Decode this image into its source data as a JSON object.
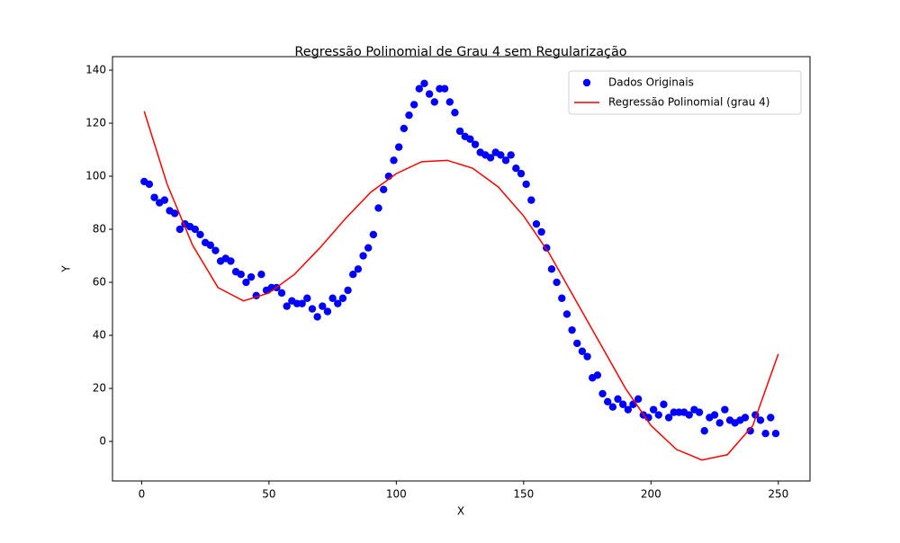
{
  "chart_data": {
    "type": "scatter",
    "title": "Regressão Polinomial de Grau 4 sem Regularização",
    "x_label": "X",
    "y_label": "Y",
    "xlim": [
      -11.45,
      262.45
    ],
    "ylim": [
      -14.9,
      145.1
    ],
    "xticks": [
      0,
      50,
      100,
      150,
      200,
      250
    ],
    "yticks": [
      0,
      20,
      40,
      60,
      80,
      100,
      120,
      140
    ],
    "legend": "upper right",
    "series": [
      {
        "name": "Dados Originais",
        "type": "scatter",
        "color": "#0000ff",
        "x": [
          1,
          3,
          5,
          7,
          9,
          11,
          13,
          15,
          17,
          19,
          21,
          23,
          25,
          27,
          29,
          31,
          33,
          35,
          37,
          39,
          41,
          43,
          45,
          47,
          49,
          51,
          53,
          55,
          57,
          59,
          61,
          63,
          65,
          67,
          69,
          71,
          73,
          75,
          77,
          79,
          81,
          83,
          85,
          87,
          89,
          91,
          93,
          95,
          97,
          99,
          101,
          103,
          105,
          107,
          109,
          111,
          113,
          115,
          117,
          119,
          121,
          123,
          125,
          127,
          129,
          131,
          133,
          135,
          137,
          139,
          141,
          143,
          145,
          147,
          149,
          151,
          153,
          155,
          157,
          159,
          161,
          163,
          165,
          167,
          169,
          171,
          173,
          175,
          177,
          179,
          181,
          183,
          185,
          187,
          189,
          191,
          193,
          195,
          197,
          199,
          201,
          203,
          205,
          207,
          209,
          211,
          213,
          215,
          217,
          219,
          221,
          223,
          225,
          227,
          229,
          231,
          233,
          235,
          237,
          239,
          241,
          243,
          245,
          247,
          249
        ],
        "values": [
          98,
          97,
          92,
          90,
          91,
          87,
          86,
          80,
          82,
          81,
          80,
          78,
          75,
          74,
          72,
          68,
          69,
          68,
          64,
          63,
          60,
          62,
          55,
          63,
          57,
          58,
          58,
          56,
          51,
          53,
          52,
          52,
          54,
          50,
          47,
          51,
          49,
          54,
          52,
          54,
          57,
          63,
          65,
          70,
          73,
          78,
          88,
          95,
          100,
          106,
          111,
          118,
          123,
          127,
          133,
          135,
          131,
          128,
          133,
          133,
          128,
          124,
          117,
          115,
          114,
          112,
          109,
          108,
          107,
          109,
          108,
          106,
          108,
          103,
          101,
          97,
          91,
          82,
          79,
          73,
          65,
          60,
          54,
          48,
          42,
          37,
          34,
          32,
          24,
          25,
          18,
          15,
          13,
          16,
          14,
          12,
          14,
          16,
          10,
          9,
          12,
          10,
          14,
          9,
          11,
          11,
          11,
          10,
          12,
          11,
          4,
          9,
          10,
          7,
          12,
          8,
          7,
          8,
          9,
          4,
          10,
          8,
          3,
          9,
          3
        ]
      },
      {
        "name": "Regressão Polinomial (grau 4)",
        "type": "line",
        "color": "#ff0000",
        "x": [
          1,
          10,
          20,
          30,
          40,
          50,
          60,
          70,
          80,
          90,
          100,
          110,
          120,
          130,
          140,
          150,
          160,
          170,
          180,
          190,
          200,
          210,
          220,
          230,
          240,
          250
        ],
        "values": [
          124.5,
          97,
          74,
          58,
          53,
          56,
          63,
          73,
          84,
          94,
          101,
          105.5,
          106,
          103,
          96,
          85,
          71,
          54,
          37,
          20,
          6,
          -3,
          -7,
          -5,
          6,
          33
        ]
      }
    ]
  }
}
